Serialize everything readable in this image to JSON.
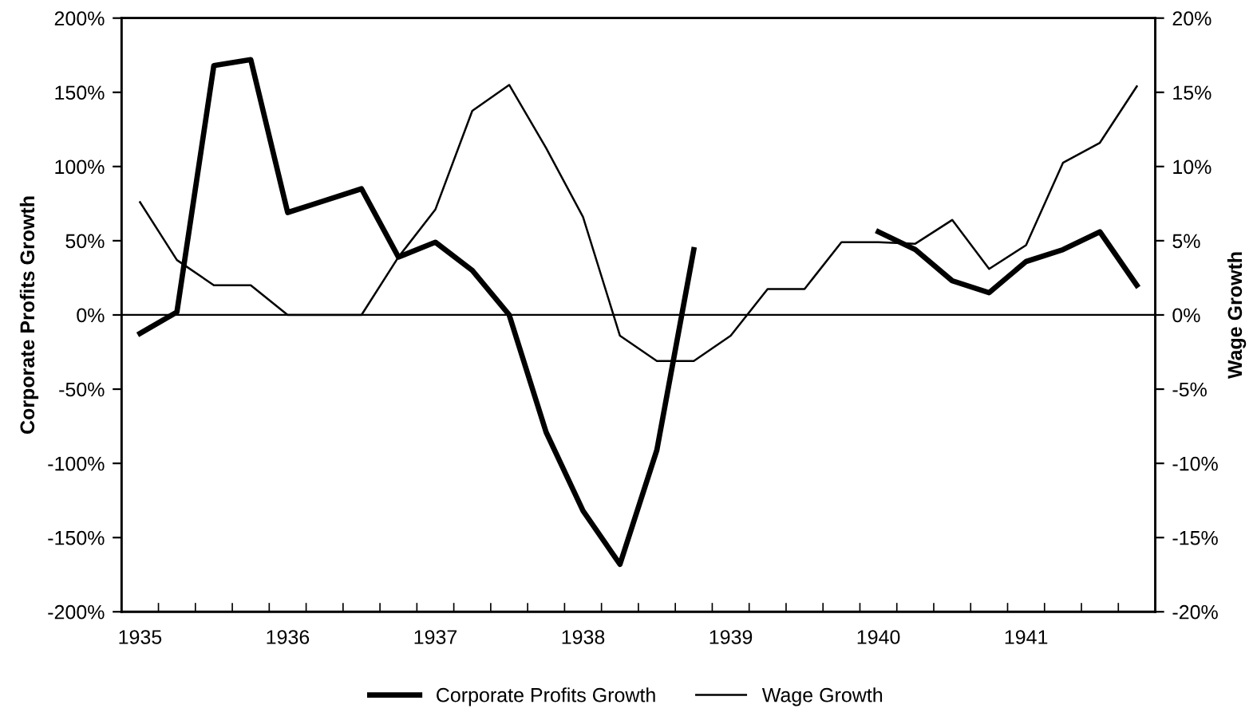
{
  "chart_data": {
    "type": "line",
    "ylabel": "Corporate Profits Growth",
    "y2label": "Wage Growth",
    "categories": [
      "1935",
      null,
      null,
      null,
      "1936",
      null,
      null,
      null,
      "1937",
      null,
      null,
      null,
      "1938",
      null,
      null,
      null,
      "1939",
      null,
      null,
      null,
      "1940",
      null,
      null,
      null,
      "1941",
      null,
      null,
      null
    ],
    "series": [
      {
        "name": "Corporate Profits Growth",
        "color": "#000000",
        "values": [
          -12.5,
          2,
          168,
          172,
          69,
          77,
          85,
          39,
          49,
          30,
          0,
          -79,
          -132,
          -168,
          -91,
          44,
          null,
          null,
          null,
          null,
          56,
          44,
          23,
          15,
          36,
          44,
          56,
          20
        ]
      },
      {
        "name": "Wage Growth",
        "color": "#000000",
        "axis": "y2",
        "values": [
          7.6,
          3.7,
          2,
          2,
          0,
          0,
          0,
          3.9,
          7.1,
          13.75,
          15.5,
          11.25,
          6.6,
          -1.4,
          -3.1,
          -3.1,
          -1.4,
          1.75,
          1.75,
          4.9,
          4.9,
          4.8,
          6.4,
          3.1,
          4.7,
          10.25,
          11.6,
          15.4
        ]
      }
    ],
    "ylim": [
      -200,
      200
    ],
    "yticks": [
      {
        "value": -200,
        "label": "-200%"
      },
      {
        "value": -150,
        "label": "-150%"
      },
      {
        "value": -100,
        "label": "-100%"
      },
      {
        "value": -50,
        "label": "-50%"
      },
      {
        "value": 0,
        "label": "0%"
      },
      {
        "value": 50,
        "label": "50%"
      },
      {
        "value": 100,
        "label": "100%"
      },
      {
        "value": 150,
        "label": "150%"
      },
      {
        "value": 200,
        "label": "200%"
      }
    ],
    "y2lim": [
      -20,
      20
    ],
    "y2ticks": [
      {
        "value": -20,
        "label": "-20%"
      },
      {
        "value": -15,
        "label": "-15%"
      },
      {
        "value": -10,
        "label": "-10%"
      },
      {
        "value": -5,
        "label": "-5%"
      },
      {
        "value": 0,
        "label": "0%"
      },
      {
        "value": 5,
        "label": "5%"
      },
      {
        "value": 10,
        "label": "10%"
      },
      {
        "value": 15,
        "label": "15%"
      },
      {
        "value": 20,
        "label": "20%"
      }
    ],
    "ref_lines": [
      {
        "axis": "y",
        "value": 0,
        "color": "#000000"
      }
    ],
    "grid": false,
    "legend": "bottom",
    "marker": "none",
    "line_style": "solid"
  }
}
